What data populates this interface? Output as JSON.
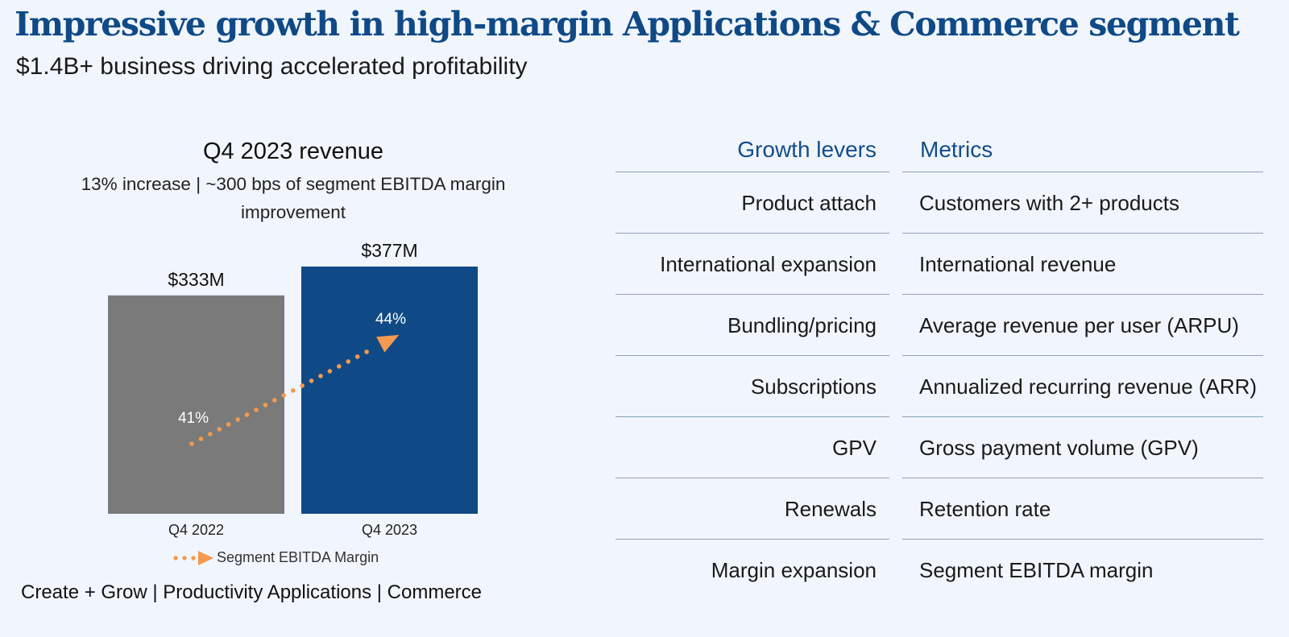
{
  "header": {
    "title": "Impressive growth in high-margin Applications & Commerce segment",
    "subtitle": "$1.4B+ business driving accelerated profitability"
  },
  "chart_data": {
    "type": "bar",
    "title": "Q4 2023 revenue",
    "subtitle": "13% increase | ~300 bps of segment EBITDA margin improvement",
    "categories": [
      "Q4 2022",
      "Q4 2023"
    ],
    "series": [
      {
        "values": [
          333,
          377
        ],
        "value_labels": [
          "$333M",
          "$377M"
        ],
        "unit": "$M",
        "colors": [
          "#7a7a7a",
          "#0f4a86"
        ]
      },
      {
        "name": "Segment EBITDA Margin",
        "type": "line",
        "style": "dotted-arrow",
        "values": [
          41,
          44
        ],
        "value_labels": [
          "41%",
          "44%"
        ],
        "unit": "%",
        "color": "#f39a50"
      }
    ],
    "legend": "bottom-center",
    "grid": false
  },
  "footer": {
    "text": "Create + Grow | Productivity Applications | Commerce"
  },
  "table": {
    "headers": {
      "lever": "Growth levers",
      "metric": "Metrics"
    },
    "rows": [
      {
        "lever": "Product attach",
        "metric": "Customers with 2+ products"
      },
      {
        "lever": "International expansion",
        "metric": "International revenue"
      },
      {
        "lever": "Bundling/pricing",
        "metric": "Average revenue per user (ARPU)"
      },
      {
        "lever": "Subscriptions",
        "metric": "Annualized recurring revenue (ARR)"
      },
      {
        "lever": "GPV",
        "metric": "Gross payment volume (GPV)"
      },
      {
        "lever": "Renewals",
        "metric": "Retention rate"
      },
      {
        "lever": "Margin expansion",
        "metric": "Segment EBITDA margin"
      }
    ]
  },
  "colors": {
    "title": "#0f4a86",
    "table_header": "#134d8a",
    "bar_prior": "#7a7a7a",
    "bar_current": "#0f4a86",
    "margin_line": "#f39a50",
    "background": "#f1f5fd"
  }
}
